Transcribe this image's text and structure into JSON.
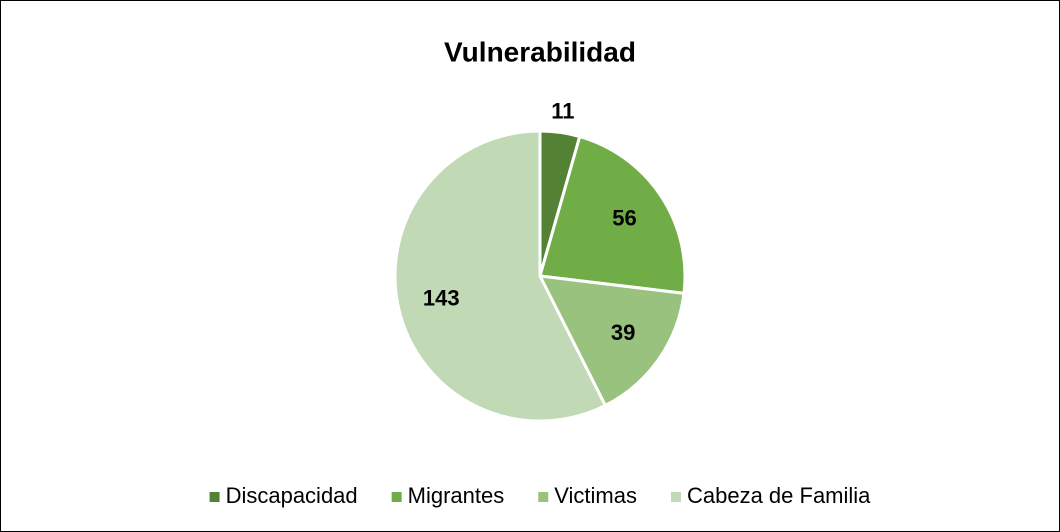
{
  "chart_data": {
    "type": "pie",
    "title": "Vulnerabilidad",
    "categories": [
      "Discapacidad",
      "Migrantes",
      "Victimas",
      "Cabeza de Familia"
    ],
    "values": [
      11,
      56,
      39,
      143
    ],
    "colors": [
      "#548235",
      "#70ad47",
      "#98c27e",
      "#c1d9b5"
    ],
    "legend": "bottom"
  }
}
